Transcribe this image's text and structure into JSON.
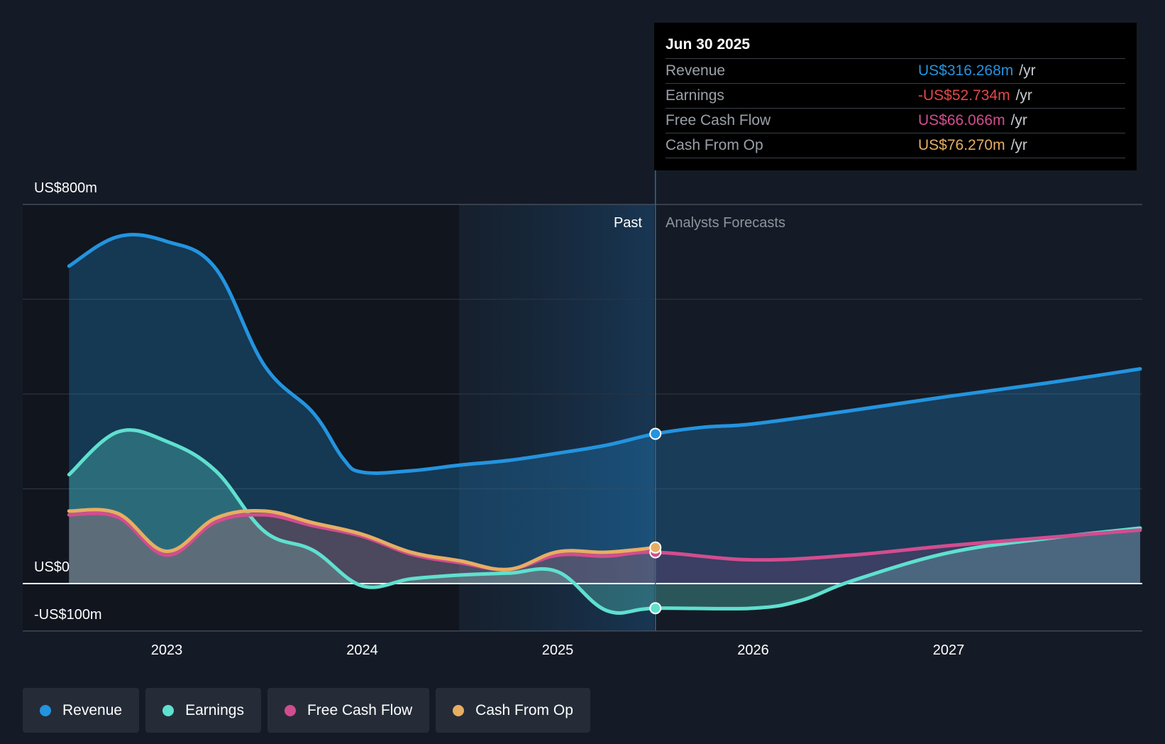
{
  "chart_data": {
    "type": "area",
    "title": "",
    "xlabel": "",
    "ylabel": "",
    "x_ticks": [
      "2023",
      "2024",
      "2025",
      "2026",
      "2027"
    ],
    "y_labels": [
      "US$800m",
      "US$0",
      "-US$100m"
    ],
    "ylim": [
      -100,
      800
    ],
    "period_labels": {
      "past": "Past",
      "forecast": "Analysts Forecasts"
    },
    "series": [
      {
        "name": "Revenue",
        "color": "#2394df",
        "points": [
          [
            2022.5,
            670
          ],
          [
            2022.75,
            732
          ],
          [
            2023.0,
            722
          ],
          [
            2023.25,
            665
          ],
          [
            2023.5,
            460
          ],
          [
            2023.75,
            360
          ],
          [
            2023.9,
            265
          ],
          [
            2024.0,
            235
          ],
          [
            2024.25,
            238
          ],
          [
            2024.5,
            250
          ],
          [
            2024.75,
            260
          ],
          [
            2025.0,
            275
          ],
          [
            2025.25,
            292
          ],
          [
            2025.5,
            316
          ],
          [
            2025.75,
            330
          ],
          [
            2026.0,
            337
          ],
          [
            2026.5,
            365
          ],
          [
            2027.0,
            395
          ],
          [
            2027.5,
            423
          ],
          [
            2027.98,
            453
          ]
        ]
      },
      {
        "name": "Earnings",
        "color": "#5fe0cf",
        "points": [
          [
            2022.5,
            230
          ],
          [
            2022.75,
            320
          ],
          [
            2023.0,
            300
          ],
          [
            2023.25,
            238
          ],
          [
            2023.5,
            110
          ],
          [
            2023.75,
            70
          ],
          [
            2024.0,
            -5
          ],
          [
            2024.25,
            10
          ],
          [
            2024.5,
            18
          ],
          [
            2024.75,
            22
          ],
          [
            2025.0,
            25
          ],
          [
            2025.25,
            -57
          ],
          [
            2025.5,
            -52
          ],
          [
            2026.0,
            -52
          ],
          [
            2026.25,
            -35
          ],
          [
            2026.5,
            5
          ],
          [
            2027.0,
            65
          ],
          [
            2027.5,
            95
          ],
          [
            2027.98,
            117
          ]
        ]
      },
      {
        "name": "Free Cash Flow",
        "color": "#d24d8f",
        "points": [
          [
            2022.5,
            145
          ],
          [
            2022.75,
            140
          ],
          [
            2023.0,
            60
          ],
          [
            2023.25,
            130
          ],
          [
            2023.5,
            145
          ],
          [
            2023.75,
            122
          ],
          [
            2024.0,
            100
          ],
          [
            2024.25,
            62
          ],
          [
            2024.5,
            44
          ],
          [
            2024.75,
            30
          ],
          [
            2025.0,
            60
          ],
          [
            2025.25,
            58
          ],
          [
            2025.5,
            66
          ],
          [
            2026.0,
            50
          ],
          [
            2026.5,
            60
          ],
          [
            2027.0,
            80
          ],
          [
            2027.5,
            97
          ],
          [
            2027.98,
            113
          ]
        ]
      },
      {
        "name": "Cash From Op",
        "color": "#e7ae62",
        "points": [
          [
            2022.5,
            153
          ],
          [
            2022.75,
            148
          ],
          [
            2023.0,
            68
          ],
          [
            2023.25,
            138
          ],
          [
            2023.5,
            153
          ],
          [
            2023.75,
            128
          ],
          [
            2024.0,
            104
          ],
          [
            2024.25,
            66
          ],
          [
            2024.5,
            48
          ],
          [
            2024.75,
            30
          ],
          [
            2025.0,
            67
          ],
          [
            2025.25,
            66
          ],
          [
            2025.5,
            76
          ]
        ]
      }
    ],
    "highlight_x": 2025.5
  },
  "tooltip": {
    "date": "Jun 30 2025",
    "unit": "/yr",
    "rows": [
      {
        "name": "Revenue",
        "value": "US$316.268m",
        "color": "#2394df"
      },
      {
        "name": "Earnings",
        "value": "-US$52.734m",
        "color": "#e54848"
      },
      {
        "name": "Free Cash Flow",
        "value": "US$66.066m",
        "color": "#d24d8f"
      },
      {
        "name": "Cash From Op",
        "value": "US$76.270m",
        "color": "#e7ae62"
      }
    ]
  },
  "legend": [
    {
      "label": "Revenue",
      "color": "#2394df"
    },
    {
      "label": "Earnings",
      "color": "#5fe0cf"
    },
    {
      "label": "Free Cash Flow",
      "color": "#d24d8f"
    },
    {
      "label": "Cash From Op",
      "color": "#e7ae62"
    }
  ]
}
